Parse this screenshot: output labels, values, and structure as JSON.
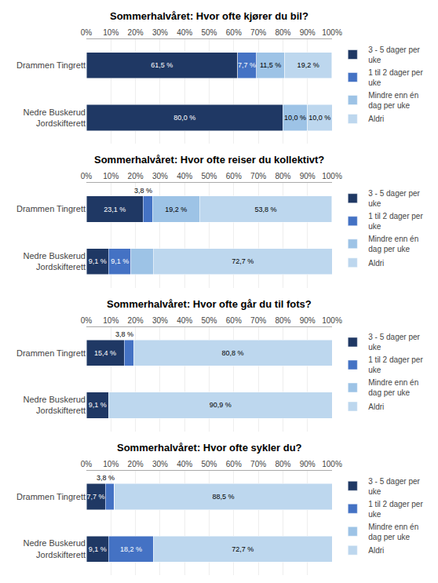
{
  "chart_data": [
    {
      "type": "bar",
      "orientation": "horizontal",
      "stacked": true,
      "title": "Sommerhalvåret: Hvor ofte kjører du bil?",
      "categories": [
        "Drammen Tingrett",
        "Nedre Buskerud\nJordskifterett"
      ],
      "series": [
        {
          "name": "3 - 5 dager per\nuke",
          "color": "#1F3864",
          "values": [
            61.5,
            80.0
          ],
          "value_labels": [
            "61,5 %",
            "80,0 %"
          ]
        },
        {
          "name": "1 til 2 dager per\nuke",
          "color": "#4472C4",
          "values": [
            7.7,
            0.0
          ],
          "value_labels": [
            "7,7 %",
            null
          ]
        },
        {
          "name": "Mindre enn én\ndag per uke",
          "color": "#9DC3E6",
          "values": [
            11.5,
            10.0
          ],
          "value_labels": [
            "11,5 %",
            "10,0 %"
          ]
        },
        {
          "name": "Aldri",
          "color": "#BDD7EE",
          "values": [
            19.2,
            10.0
          ],
          "value_labels": [
            "19,2 %",
            "10,0 %"
          ]
        }
      ],
      "xlim": [
        0,
        100
      ],
      "xticks": [
        {
          "value": 0,
          "label": "0%"
        },
        {
          "value": 10,
          "label": "10%"
        },
        {
          "value": 20,
          "label": "20%"
        },
        {
          "value": 30,
          "label": "30%"
        },
        {
          "value": 40,
          "label": "40%"
        },
        {
          "value": 50,
          "label": "50%"
        },
        {
          "value": 60,
          "label": "60%"
        },
        {
          "value": 70,
          "label": "70%"
        },
        {
          "value": 80,
          "label": "80%"
        },
        {
          "value": 90,
          "label": "90%"
        },
        {
          "value": 100,
          "label": "100%"
        }
      ],
      "grid": true,
      "legend": "right",
      "data_labels": true
    },
    {
      "type": "bar",
      "orientation": "horizontal",
      "stacked": true,
      "title": "Sommerhalvåret: Hvor ofte reiser du kollektivt?",
      "categories": [
        "Drammen Tingrett",
        "Nedre Buskerud\nJordskifterett"
      ],
      "series": [
        {
          "name": "3 - 5 dager per\nuke",
          "color": "#1F3864",
          "values": [
            23.1,
            9.1
          ],
          "value_labels": [
            "23,1 %",
            "9,1 %"
          ]
        },
        {
          "name": "1 til 2 dager per\nuke",
          "color": "#4472C4",
          "values": [
            3.8,
            9.1
          ],
          "value_labels": [
            null,
            "9,1 %"
          ]
        },
        {
          "name": "Mindre enn én\ndag per uke",
          "color": "#9DC3E6",
          "values": [
            19.2,
            9.1
          ],
          "value_labels": [
            "19,2 %",
            null
          ]
        },
        {
          "name": "Aldri",
          "color": "#BDD7EE",
          "values": [
            53.8,
            72.7
          ],
          "value_labels": [
            "53,8 %",
            "72,7 %"
          ]
        }
      ],
      "annotations": [
        {
          "text": "3,8 %",
          "x": 23.1,
          "y": "Drammen Tingrett"
        }
      ],
      "xlim": [
        0,
        100
      ],
      "xticks": [
        {
          "value": 0,
          "label": "0%"
        },
        {
          "value": 10,
          "label": "10%"
        },
        {
          "value": 20,
          "label": "20%"
        },
        {
          "value": 30,
          "label": "30%"
        },
        {
          "value": 40,
          "label": "40%"
        },
        {
          "value": 50,
          "label": "50%"
        },
        {
          "value": 60,
          "label": "60%"
        },
        {
          "value": 70,
          "label": "70%"
        },
        {
          "value": 80,
          "label": "80%"
        },
        {
          "value": 90,
          "label": "90%"
        },
        {
          "value": 100,
          "label": "100%"
        }
      ],
      "grid": true,
      "legend": "right",
      "data_labels": true
    },
    {
      "type": "bar",
      "orientation": "horizontal",
      "stacked": true,
      "title": "Sommerhalvåret: Hvor ofte går du til fots?",
      "categories": [
        "Drammen Tingrett",
        "Nedre Buskerud\nJordskifterett"
      ],
      "series": [
        {
          "name": "3 - 5 dager per\nuke",
          "color": "#1F3864",
          "values": [
            15.4,
            9.1
          ],
          "value_labels": [
            "15,4 %",
            "9,1 %"
          ]
        },
        {
          "name": "1 til 2 dager per\nuke",
          "color": "#4472C4",
          "values": [
            3.8,
            0.0
          ],
          "value_labels": [
            null,
            null
          ]
        },
        {
          "name": "Mindre enn én\ndag per uke",
          "color": "#9DC3E6",
          "values": [
            0.0,
            0.0
          ],
          "value_labels": [
            null,
            null
          ]
        },
        {
          "name": "Aldri",
          "color": "#BDD7EE",
          "values": [
            80.8,
            90.9
          ],
          "value_labels": [
            "80,8 %",
            "90,9 %"
          ]
        }
      ],
      "annotations": [
        {
          "text": "3,8 %",
          "x": 15.4,
          "y": "Drammen Tingrett"
        }
      ],
      "xlim": [
        0,
        100
      ],
      "xticks": [
        {
          "value": 0,
          "label": "0%"
        },
        {
          "value": 10,
          "label": "10%"
        },
        {
          "value": 20,
          "label": "20%"
        },
        {
          "value": 30,
          "label": "30%"
        },
        {
          "value": 40,
          "label": "40%"
        },
        {
          "value": 50,
          "label": "50%"
        },
        {
          "value": 60,
          "label": "60%"
        },
        {
          "value": 70,
          "label": "70%"
        },
        {
          "value": 80,
          "label": "80%"
        },
        {
          "value": 90,
          "label": "90%"
        },
        {
          "value": 100,
          "label": "100%"
        }
      ],
      "grid": true,
      "legend": "right",
      "data_labels": true
    },
    {
      "type": "bar",
      "orientation": "horizontal",
      "stacked": true,
      "title": "Sommerhalvåret: Hvor ofte sykler du?",
      "categories": [
        "Drammen Tingrett",
        "Nedre Buskerud\nJordskifterett"
      ],
      "series": [
        {
          "name": "3 - 5 dager per\nuke",
          "color": "#1F3864",
          "values": [
            7.7,
            9.1
          ],
          "value_labels": [
            "7,7 %",
            "9,1 %"
          ]
        },
        {
          "name": "1 til 2 dager per\nuke",
          "color": "#4472C4",
          "values": [
            3.8,
            18.2
          ],
          "value_labels": [
            null,
            "18,2 %"
          ]
        },
        {
          "name": "Mindre enn én\ndag per uke",
          "color": "#9DC3E6",
          "values": [
            0.0,
            0.0
          ],
          "value_labels": [
            null,
            null
          ]
        },
        {
          "name": "Aldri",
          "color": "#BDD7EE",
          "values": [
            88.5,
            72.7
          ],
          "value_labels": [
            "88,5 %",
            "72,7 %"
          ]
        }
      ],
      "annotations": [
        {
          "text": "3,8 %",
          "x": 7.7,
          "y": "Drammen Tingrett"
        }
      ],
      "xlim": [
        0,
        100
      ],
      "xticks": [
        {
          "value": 0,
          "label": "0%"
        },
        {
          "value": 10,
          "label": "10%"
        },
        {
          "value": 20,
          "label": "20%"
        },
        {
          "value": 30,
          "label": "30%"
        },
        {
          "value": 40,
          "label": "40%"
        },
        {
          "value": 50,
          "label": "50%"
        },
        {
          "value": 60,
          "label": "60%"
        },
        {
          "value": 70,
          "label": "70%"
        },
        {
          "value": 80,
          "label": "80%"
        },
        {
          "value": 90,
          "label": "90%"
        },
        {
          "value": 100,
          "label": "100%"
        }
      ],
      "grid": true,
      "legend": "right",
      "data_labels": true
    }
  ]
}
